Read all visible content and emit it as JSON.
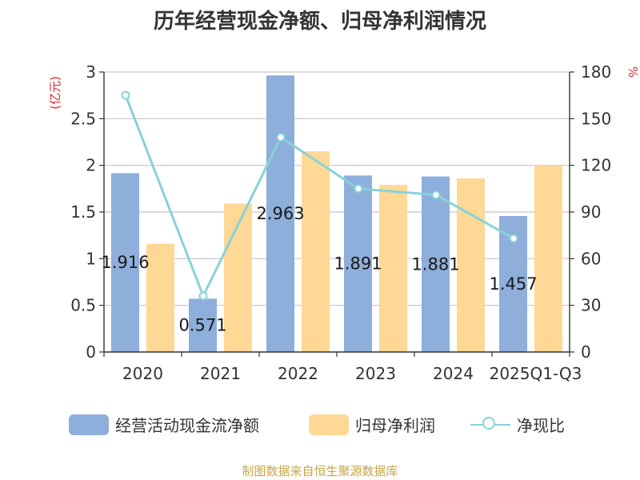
{
  "chart_data": {
    "type": "bar",
    "title": "历年经营现金净额、归母净利润情况",
    "categories": [
      "2020",
      "2021",
      "2022",
      "2023",
      "2024",
      "2025Q1-Q3"
    ],
    "y_left_label": "(亿元)",
    "y_right_label": "%",
    "y_left_ticks": [
      "0",
      "0.5",
      "1",
      "1.5",
      "2",
      "2.5",
      "3"
    ],
    "y_right_ticks": [
      "0",
      "30",
      "60",
      "90",
      "120",
      "150",
      "180"
    ],
    "ylim_left": [
      0,
      3
    ],
    "ylim_right": [
      0,
      180
    ],
    "grid": true,
    "series": [
      {
        "name": "经营活动现金流净额",
        "type": "bar",
        "axis": "left",
        "color": "#8eaedb",
        "values": [
          1.916,
          0.571,
          2.963,
          1.891,
          1.881,
          1.457
        ],
        "labels": [
          "1.916",
          "0.571",
          "2.963",
          "1.891",
          "1.881",
          "1.457"
        ]
      },
      {
        "name": "归母净利润",
        "type": "bar",
        "axis": "left",
        "color": "#ffd896",
        "values": [
          1.16,
          1.59,
          2.15,
          1.79,
          1.86,
          2.0
        ]
      },
      {
        "name": "净现比",
        "type": "line",
        "axis": "right",
        "color": "#86d3d8",
        "values": [
          165,
          36,
          138,
          105,
          101,
          73
        ]
      }
    ],
    "legend_position": "bottom"
  },
  "source": "制图数据来自恒生聚源数据库",
  "colors": {
    "axis_label_red": "#e0262b",
    "source_text": "#c9a445",
    "text": "#333333"
  }
}
